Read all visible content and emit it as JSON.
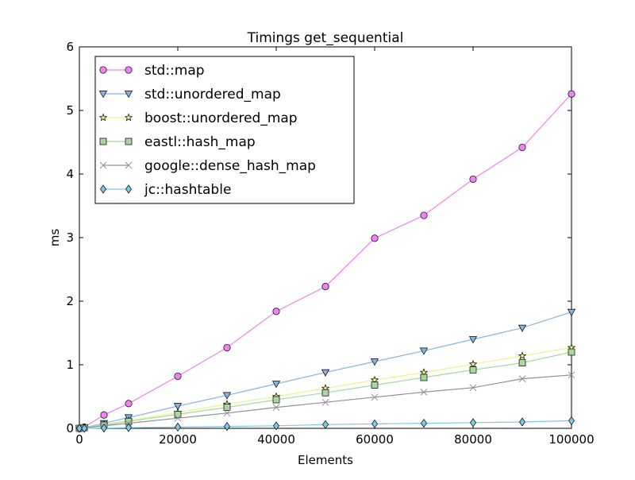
{
  "chart_data": {
    "type": "line",
    "title": "Timings get_sequential",
    "xlabel": "Elements",
    "ylabel": "ms",
    "xlim": [
      0,
      100000
    ],
    "ylim": [
      0,
      6
    ],
    "x_ticks": [
      0,
      20000,
      40000,
      60000,
      80000,
      100000
    ],
    "y_ticks": [
      0,
      1,
      2,
      3,
      4,
      5,
      6
    ],
    "grid": false,
    "legend_position": "top-left",
    "x": [
      0,
      1000,
      5000,
      10000,
      20000,
      30000,
      40000,
      50000,
      60000,
      70000,
      80000,
      90000,
      100000
    ],
    "series": [
      {
        "name": "std::map",
        "color": "#ee82ee",
        "marker": "circle",
        "values": [
          0.0,
          0.02,
          0.21,
          0.39,
          0.82,
          1.27,
          1.84,
          2.23,
          2.99,
          3.35,
          3.92,
          4.42,
          5.26
        ]
      },
      {
        "name": "std::unordered_map",
        "color": "#87b5e1",
        "marker": "triangle-down",
        "values": [
          0.0,
          0.01,
          0.08,
          0.17,
          0.35,
          0.52,
          0.7,
          0.88,
          1.05,
          1.22,
          1.4,
          1.58,
          1.83
        ]
      },
      {
        "name": "boost::unordered_map",
        "color": "#e6f58c",
        "marker": "star",
        "values": [
          0.0,
          0.01,
          0.06,
          0.12,
          0.25,
          0.38,
          0.5,
          0.63,
          0.76,
          0.88,
          1.01,
          1.14,
          1.27
        ]
      },
      {
        "name": "eastl::hash_map",
        "color": "#a8d8a0",
        "marker": "square",
        "values": [
          0.0,
          0.01,
          0.05,
          0.11,
          0.22,
          0.33,
          0.45,
          0.56,
          0.68,
          0.8,
          0.92,
          1.03,
          1.2
        ]
      },
      {
        "name": "google::dense_hash_map",
        "color": "#909098",
        "marker": "x",
        "values": [
          0.0,
          0.01,
          0.04,
          0.08,
          0.16,
          0.24,
          0.33,
          0.41,
          0.49,
          0.57,
          0.64,
          0.78,
          0.84
        ]
      },
      {
        "name": "jc::hashtable",
        "color": "#7ec8e8",
        "marker": "diamond",
        "values": [
          0.0,
          0.0,
          0.005,
          0.01,
          0.02,
          0.03,
          0.04,
          0.06,
          0.07,
          0.08,
          0.09,
          0.1,
          0.12
        ]
      }
    ]
  }
}
